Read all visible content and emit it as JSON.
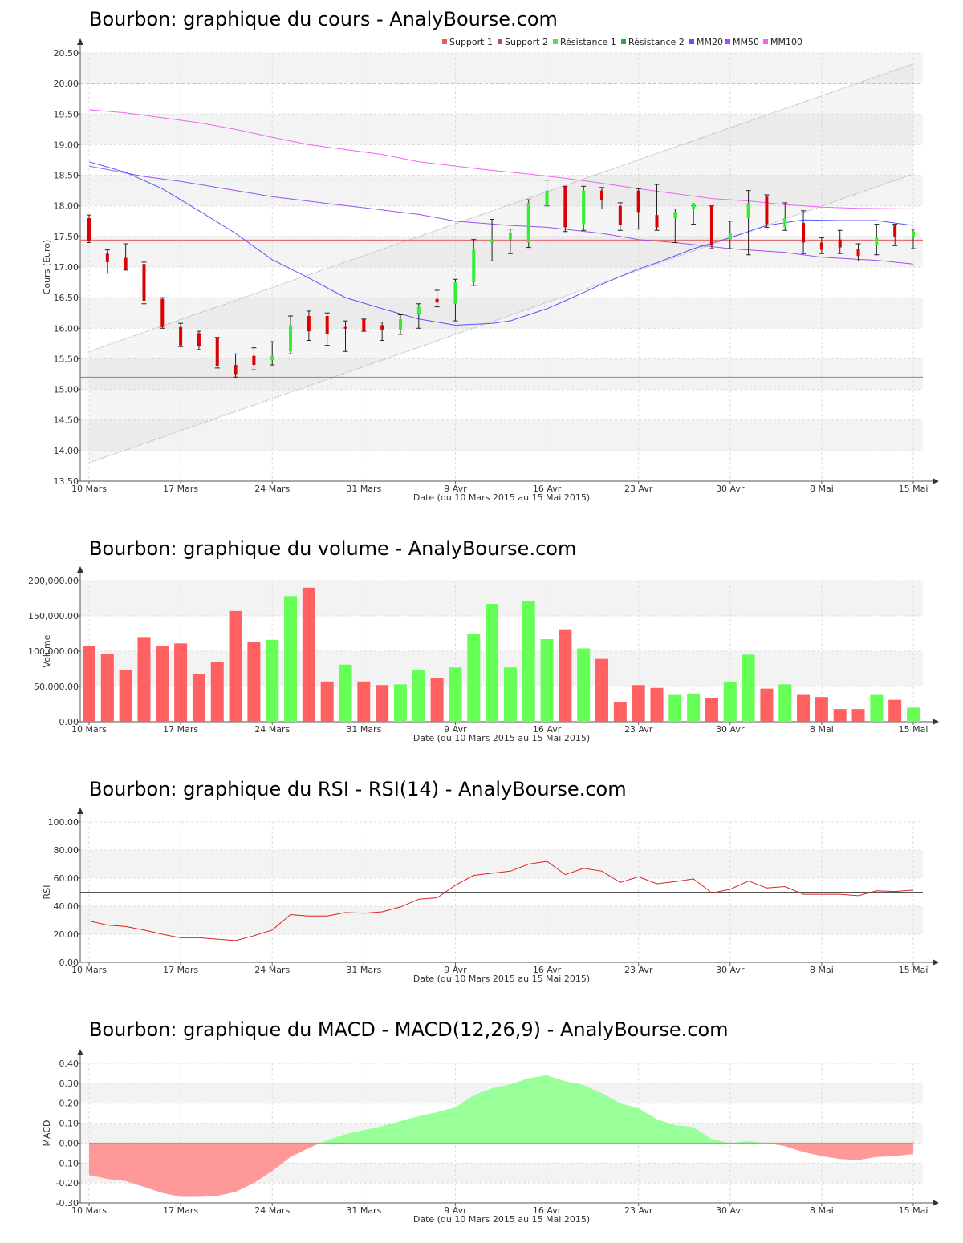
{
  "titles": {
    "price": "Bourbon: graphique du cours - AnalyBourse.com",
    "volume": "Bourbon: graphique du volume - AnalyBourse.com",
    "rsi": "Bourbon: graphique du RSI - RSI(14) - AnalyBourse.com",
    "macd": "Bourbon: graphique du MACD - MACD(12,26,9) - AnalyBourse.com"
  },
  "colors": {
    "up": "#33ee33",
    "down": "#dd0000",
    "vol_up": "#66ff55",
    "vol_down": "#ff6060",
    "support1": "#e06060",
    "support2": "#b05050",
    "res1": "#55dd55",
    "res2": "#33aa33",
    "mm20": "#5555ff",
    "mm50": "#9955ee",
    "mm100": "#ee66ee",
    "rsi": "#dd2222",
    "macd_pos": "#99ff99",
    "macd_neg": "#ff9999"
  },
  "chart_data": [
    {
      "type": "candlestick",
      "title": "Bourbon: graphique du cours - AnalyBourse.com",
      "xlabel": "Date (du 10 Mars 2015 au 15 Mai 2015)",
      "ylabel": "Cours (Euro)",
      "ylim": [
        13.5,
        20.5
      ],
      "yticks": [
        "13.50",
        "14.00",
        "14.50",
        "15.00",
        "15.50",
        "16.00",
        "16.50",
        "17.00",
        "17.50",
        "18.00",
        "18.50",
        "19.00",
        "19.50",
        "20.00",
        "20.50"
      ],
      "xticks": [
        {
          "label": "10 Mars",
          "index": 0
        },
        {
          "label": "17 Mars",
          "index": 5
        },
        {
          "label": "24 Mars",
          "index": 10
        },
        {
          "label": "31 Mars",
          "index": 15
        },
        {
          "label": "9 Avr",
          "index": 20
        },
        {
          "label": "16 Avr",
          "index": 25
        },
        {
          "label": "23 Avr",
          "index": 30
        },
        {
          "label": "30 Avr",
          "index": 35
        },
        {
          "label": "8 Mai",
          "index": 40
        },
        {
          "label": "15 Mai",
          "index": 45
        }
      ],
      "legend": [
        "Support 1",
        "Support 2",
        "Résistance 1",
        "Résistance 2",
        "MM20",
        "MM50",
        "MM100"
      ],
      "legend_position": "top-right",
      "candles": [
        {
          "o": 17.8,
          "h": 17.85,
          "l": 17.4,
          "c": 17.42
        },
        {
          "o": 17.22,
          "h": 17.28,
          "l": 16.9,
          "c": 17.08
        },
        {
          "o": 17.15,
          "h": 17.38,
          "l": 16.95,
          "c": 16.95
        },
        {
          "o": 17.05,
          "h": 17.08,
          "l": 16.4,
          "c": 16.45
        },
        {
          "o": 16.48,
          "h": 16.5,
          "l": 16.0,
          "c": 16.02
        },
        {
          "o": 16.02,
          "h": 16.08,
          "l": 15.7,
          "c": 15.72
        },
        {
          "o": 15.92,
          "h": 15.95,
          "l": 15.65,
          "c": 15.7
        },
        {
          "o": 15.85,
          "h": 15.85,
          "l": 15.35,
          "c": 15.38
        },
        {
          "o": 15.4,
          "h": 15.58,
          "l": 15.2,
          "c": 15.25
        },
        {
          "o": 15.55,
          "h": 15.68,
          "l": 15.32,
          "c": 15.4
        },
        {
          "o": 15.48,
          "h": 15.78,
          "l": 15.4,
          "c": 15.55
        },
        {
          "o": 15.62,
          "h": 16.2,
          "l": 15.58,
          "c": 16.05
        },
        {
          "o": 16.2,
          "h": 16.28,
          "l": 15.8,
          "c": 15.95
        },
        {
          "o": 16.2,
          "h": 16.25,
          "l": 15.72,
          "c": 15.9
        },
        {
          "o": 16.02,
          "h": 16.12,
          "l": 15.62,
          "c": 16.0
        },
        {
          "o": 16.15,
          "h": 16.15,
          "l": 15.95,
          "c": 15.95
        },
        {
          "o": 16.05,
          "h": 16.1,
          "l": 15.8,
          "c": 15.98
        },
        {
          "o": 15.98,
          "h": 16.22,
          "l": 15.9,
          "c": 16.15
        },
        {
          "o": 16.22,
          "h": 16.4,
          "l": 16.0,
          "c": 16.35
        },
        {
          "o": 16.48,
          "h": 16.62,
          "l": 16.35,
          "c": 16.42
        },
        {
          "o": 16.4,
          "h": 16.8,
          "l": 16.12,
          "c": 16.75
        },
        {
          "o": 16.75,
          "h": 17.45,
          "l": 16.7,
          "c": 17.3
        },
        {
          "o": 17.4,
          "h": 17.78,
          "l": 17.1,
          "c": 17.45
        },
        {
          "o": 17.45,
          "h": 17.62,
          "l": 17.22,
          "c": 17.55
        },
        {
          "o": 17.4,
          "h": 18.1,
          "l": 17.32,
          "c": 18.05
        },
        {
          "o": 18.0,
          "h": 18.42,
          "l": 18.0,
          "c": 18.25
        },
        {
          "o": 18.32,
          "h": 18.32,
          "l": 17.58,
          "c": 17.65
        },
        {
          "o": 17.7,
          "h": 18.32,
          "l": 17.6,
          "c": 18.25
        },
        {
          "o": 18.25,
          "h": 18.3,
          "l": 17.95,
          "c": 18.1
        },
        {
          "o": 18.0,
          "h": 18.05,
          "l": 17.6,
          "c": 17.68
        },
        {
          "o": 18.25,
          "h": 18.28,
          "l": 17.62,
          "c": 17.9
        },
        {
          "o": 17.85,
          "h": 18.35,
          "l": 17.6,
          "c": 17.65
        },
        {
          "o": 17.8,
          "h": 17.95,
          "l": 17.4,
          "c": 17.9
        },
        {
          "o": 17.95,
          "h": 18.0,
          "l": 17.7,
          "c": 18.05
        },
        {
          "o": 18.0,
          "h": 18.0,
          "l": 17.3,
          "c": 17.35
        },
        {
          "o": 17.45,
          "h": 17.75,
          "l": 17.3,
          "c": 17.55
        },
        {
          "o": 17.8,
          "h": 18.25,
          "l": 17.2,
          "c": 18.05
        },
        {
          "o": 18.15,
          "h": 18.18,
          "l": 17.65,
          "c": 17.7
        },
        {
          "o": 17.65,
          "h": 18.05,
          "l": 17.6,
          "c": 17.8
        },
        {
          "o": 17.72,
          "h": 17.92,
          "l": 17.22,
          "c": 17.4
        },
        {
          "o": 17.4,
          "h": 17.48,
          "l": 17.22,
          "c": 17.28
        },
        {
          "o": 17.45,
          "h": 17.6,
          "l": 17.22,
          "c": 17.32
        },
        {
          "o": 17.3,
          "h": 17.38,
          "l": 17.1,
          "c": 17.18
        },
        {
          "o": 17.35,
          "h": 17.7,
          "l": 17.2,
          "c": 17.48
        },
        {
          "o": 17.68,
          "h": 17.7,
          "l": 17.35,
          "c": 17.5
        },
        {
          "o": 17.5,
          "h": 17.62,
          "l": 17.3,
          "c": 17.58
        }
      ],
      "support_lines": [
        15.2,
        17.44
      ],
      "resistance_lines": [
        18.42,
        20.0
      ],
      "mm20": [
        [
          0,
          18.72
        ],
        [
          2,
          18.55
        ],
        [
          4,
          18.28
        ],
        [
          6,
          17.92
        ],
        [
          8,
          17.55
        ],
        [
          10,
          17.12
        ],
        [
          12,
          16.82
        ],
        [
          14,
          16.5
        ],
        [
          16,
          16.32
        ],
        [
          18,
          16.15
        ],
        [
          20,
          16.05
        ],
        [
          22,
          16.08
        ],
        [
          23,
          16.12
        ],
        [
          25,
          16.32
        ],
        [
          26,
          16.45
        ],
        [
          28,
          16.72
        ],
        [
          30,
          16.97
        ],
        [
          31,
          17.07
        ],
        [
          33,
          17.3
        ],
        [
          35,
          17.48
        ],
        [
          37,
          17.68
        ],
        [
          39,
          17.77
        ],
        [
          41,
          17.76
        ],
        [
          43,
          17.76
        ],
        [
          45,
          17.68
        ]
      ],
      "mm50": [
        [
          0,
          18.65
        ],
        [
          3,
          18.48
        ],
        [
          5,
          18.4
        ],
        [
          8,
          18.25
        ],
        [
          10,
          18.15
        ],
        [
          13,
          18.04
        ],
        [
          15,
          17.97
        ],
        [
          18,
          17.86
        ],
        [
          20,
          17.75
        ],
        [
          23,
          17.68
        ],
        [
          25,
          17.65
        ],
        [
          28,
          17.55
        ],
        [
          30,
          17.45
        ],
        [
          32,
          17.4
        ],
        [
          35,
          17.3
        ],
        [
          38,
          17.24
        ],
        [
          40,
          17.16
        ],
        [
          43,
          17.11
        ],
        [
          45,
          17.05
        ]
      ],
      "mm100": [
        [
          0,
          19.57
        ],
        [
          2,
          19.52
        ],
        [
          4,
          19.44
        ],
        [
          6,
          19.36
        ],
        [
          8,
          19.25
        ],
        [
          10,
          19.12
        ],
        [
          12,
          19.0
        ],
        [
          14,
          18.92
        ],
        [
          16,
          18.84
        ],
        [
          18,
          18.72
        ],
        [
          20,
          18.65
        ],
        [
          22,
          18.58
        ],
        [
          24,
          18.52
        ],
        [
          26,
          18.45
        ],
        [
          28,
          18.37
        ],
        [
          30,
          18.28
        ],
        [
          32,
          18.2
        ],
        [
          34,
          18.12
        ],
        [
          36,
          18.08
        ],
        [
          38,
          18.02
        ],
        [
          40,
          17.98
        ],
        [
          42,
          17.96
        ],
        [
          45,
          17.95
        ]
      ],
      "channel": {
        "upper_start": [
          0,
          15.62
        ],
        "upper_end": [
          45,
          20.32
        ],
        "lower_start": [
          0,
          13.8
        ],
        "lower_end": [
          45,
          18.52
        ]
      }
    },
    {
      "type": "bar",
      "title": "Bourbon: graphique du volume - AnalyBourse.com",
      "xlabel": "Date (du 10 Mars 2015 au 15 Mai 2015)",
      "ylabel": "Volume",
      "ylim": [
        0,
        200000
      ],
      "yticks": [
        "0.00",
        "50,000.00",
        "100,000.00",
        "150,000.00",
        "200,000.00"
      ],
      "values": [
        107000,
        96000,
        73000,
        120000,
        108000,
        111000,
        68000,
        85000,
        157000,
        113000,
        116000,
        178000,
        190000,
        57000,
        81000,
        57000,
        52000,
        53000,
        73000,
        62000,
        77000,
        124000,
        167000,
        77000,
        171000,
        117000,
        131000,
        104000,
        89000,
        28000,
        52000,
        48000,
        38000,
        40000,
        34000,
        57000,
        95000,
        47000,
        53000,
        38000,
        35000,
        18000,
        18000,
        38000,
        31000,
        20000
      ],
      "up": [
        false,
        false,
        false,
        false,
        false,
        false,
        false,
        false,
        false,
        false,
        true,
        true,
        false,
        false,
        true,
        false,
        false,
        true,
        true,
        false,
        true,
        true,
        true,
        true,
        true,
        true,
        false,
        true,
        false,
        false,
        false,
        false,
        true,
        true,
        false,
        true,
        true,
        false,
        true,
        false,
        false,
        false,
        false,
        true,
        false,
        true
      ]
    },
    {
      "type": "line",
      "title": "Bourbon: graphique du RSI - RSI(14) - AnalyBourse.com",
      "xlabel": "Date (du 10 Mars 2015 au 15 Mai 2015)",
      "ylabel": "RSI",
      "ylim": [
        0,
        100
      ],
      "yticks": [
        "0.00",
        "20.00",
        "40.00",
        "60.00",
        "80.00",
        "100.00"
      ],
      "reference_line": 50,
      "values": [
        29.5,
        26.5,
        25.5,
        23.0,
        20.0,
        17.5,
        17.5,
        16.5,
        15.5,
        19.0,
        23.0,
        34.0,
        33.0,
        33.0,
        35.5,
        35.0,
        36.0,
        39.5,
        45.0,
        46.0,
        55.0,
        62.0,
        63.5,
        65.0,
        70.0,
        72.0,
        62.5,
        67.0,
        65.0,
        57.0,
        61.0,
        56.0,
        57.5,
        59.5,
        49.5,
        52.0,
        58.0,
        53.0,
        54.0,
        48.5,
        48.5,
        48.5,
        47.5,
        51.0,
        50.5,
        51.5
      ]
    },
    {
      "type": "area",
      "title": "Bourbon: graphique du MACD - MACD(12,26,9) - AnalyBourse.com",
      "xlabel": "Date (du 10 Mars 2015 au 15 Mai 2015)",
      "ylabel": "MACD",
      "ylim": [
        -0.3,
        0.4
      ],
      "yticks": [
        "-0.30",
        "-0.20",
        "-0.10",
        "0.00",
        "0.10",
        "0.20",
        "0.30",
        "0.40"
      ],
      "values": [
        -0.16,
        -0.18,
        -0.19,
        -0.22,
        -0.25,
        -0.27,
        -0.27,
        -0.265,
        -0.245,
        -0.2,
        -0.14,
        -0.07,
        -0.025,
        0.015,
        0.045,
        0.065,
        0.085,
        0.11,
        0.135,
        0.155,
        0.18,
        0.24,
        0.275,
        0.295,
        0.325,
        0.34,
        0.31,
        0.29,
        0.25,
        0.2,
        0.175,
        0.12,
        0.09,
        0.08,
        0.02,
        0.0,
        0.01,
        0.0,
        -0.015,
        -0.045,
        -0.065,
        -0.08,
        -0.085,
        -0.07,
        -0.065,
        -0.055
      ]
    }
  ]
}
